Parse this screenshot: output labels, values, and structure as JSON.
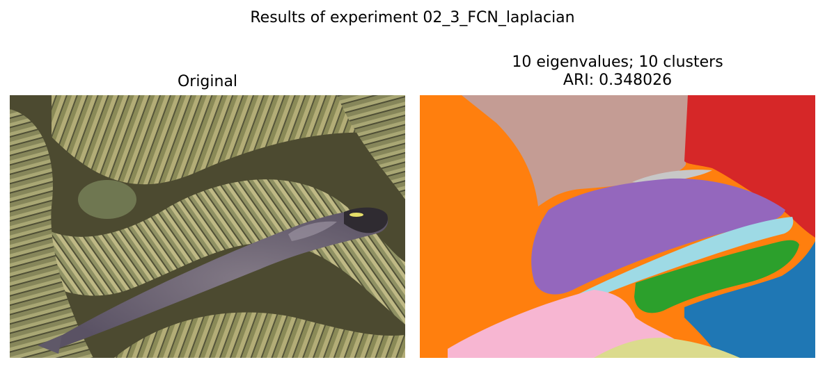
{
  "figure": {
    "suptitle": "Results of experiment 02_3_FCN_laplacian"
  },
  "panels": [
    {
      "title": "Original",
      "content": "photo-coral-fish"
    },
    {
      "title_line1": "10 eigenvalues; 10 clusters",
      "title_line2": "ARI: 0.348026",
      "content": "segmentation-map"
    }
  ],
  "colors": {
    "coral_base": "#8f8f5c",
    "fish_body": "#6f667a",
    "seg_orange": "#ff7f0e",
    "seg_brown": "#c49c94",
    "seg_red": "#d62728",
    "seg_purple": "#9467bd",
    "seg_lightblue": "#9edae5",
    "seg_green": "#2ca02c",
    "seg_blue": "#1f77b4",
    "seg_pink": "#f7b6d2",
    "seg_yellow": "#dbdb8d",
    "seg_gray": "#c7c7c7"
  }
}
